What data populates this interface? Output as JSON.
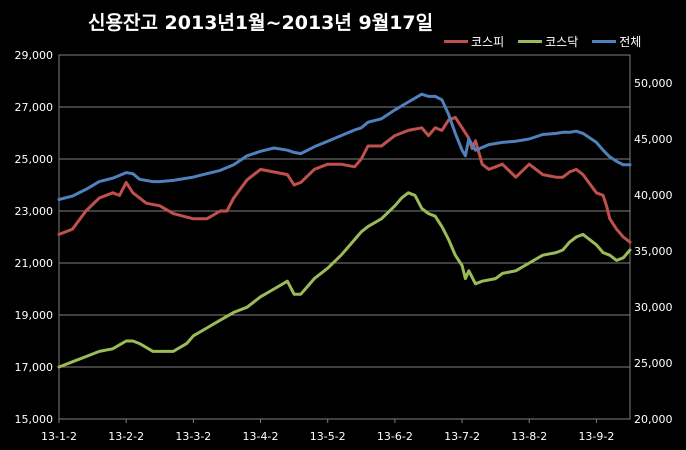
{
  "chart_data": {
    "type": "line",
    "title": "신용잔고 2013년1월~2013년 9월17일",
    "x_ticks": [
      "13-1-2",
      "13-2-2",
      "13-3-2",
      "13-4-2",
      "13-5-2",
      "13-6-2",
      "13-7-2",
      "13-8-2",
      "13-9-2"
    ],
    "x_range": [
      0,
      8.5
    ],
    "y_left": {
      "min": 15000,
      "max": 29000,
      "step": 2000,
      "ticks": [
        "15,000",
        "17,000",
        "19,000",
        "21,000",
        "23,000",
        "25,000",
        "27,000",
        "29,000"
      ]
    },
    "y_right": {
      "min": 20000,
      "max": 52500,
      "step": 5000,
      "ticks": [
        "20,000",
        "25,000",
        "30,000",
        "35,000",
        "40,000",
        "45,000",
        "50,000"
      ]
    },
    "grid": true,
    "legend_position": "top-right",
    "series": [
      {
        "name": "코스피",
        "axis": "left",
        "color": "#c0504d",
        "points": [
          [
            0,
            22100
          ],
          [
            0.2,
            22300
          ],
          [
            0.4,
            23000
          ],
          [
            0.6,
            23500
          ],
          [
            0.8,
            23700
          ],
          [
            0.9,
            23600
          ],
          [
            1.0,
            24100
          ],
          [
            1.1,
            23700
          ],
          [
            1.3,
            23300
          ],
          [
            1.5,
            23200
          ],
          [
            1.7,
            22900
          ],
          [
            2.0,
            22700
          ],
          [
            2.2,
            22700
          ],
          [
            2.4,
            23000
          ],
          [
            2.5,
            23000
          ],
          [
            2.6,
            23500
          ],
          [
            2.8,
            24200
          ],
          [
            3.0,
            24600
          ],
          [
            3.2,
            24500
          ],
          [
            3.4,
            24400
          ],
          [
            3.5,
            24000
          ],
          [
            3.6,
            24100
          ],
          [
            3.8,
            24600
          ],
          [
            4.0,
            24800
          ],
          [
            4.2,
            24800
          ],
          [
            4.4,
            24700
          ],
          [
            4.5,
            25000
          ],
          [
            4.6,
            25500
          ],
          [
            4.8,
            25500
          ],
          [
            5.0,
            25900
          ],
          [
            5.2,
            26100
          ],
          [
            5.4,
            26200
          ],
          [
            5.5,
            25900
          ],
          [
            5.6,
            26200
          ],
          [
            5.7,
            26100
          ],
          [
            5.8,
            26500
          ],
          [
            5.9,
            26600
          ],
          [
            6.0,
            26200
          ],
          [
            6.1,
            25800
          ],
          [
            6.15,
            25400
          ],
          [
            6.2,
            25700
          ],
          [
            6.3,
            24800
          ],
          [
            6.4,
            24600
          ],
          [
            6.5,
            24700
          ],
          [
            6.6,
            24800
          ],
          [
            6.8,
            24300
          ],
          [
            7.0,
            24800
          ],
          [
            7.2,
            24400
          ],
          [
            7.4,
            24300
          ],
          [
            7.5,
            24300
          ],
          [
            7.6,
            24500
          ],
          [
            7.7,
            24600
          ],
          [
            7.8,
            24400
          ],
          [
            8.0,
            23700
          ],
          [
            8.1,
            23600
          ],
          [
            8.15,
            23200
          ],
          [
            8.2,
            22700
          ],
          [
            8.3,
            22300
          ],
          [
            8.4,
            22000
          ],
          [
            8.5,
            21800
          ]
        ]
      },
      {
        "name": "코스닥",
        "axis": "left",
        "color": "#9bbb59",
        "points": [
          [
            0,
            17000
          ],
          [
            0.2,
            17200
          ],
          [
            0.4,
            17400
          ],
          [
            0.6,
            17600
          ],
          [
            0.8,
            17700
          ],
          [
            1.0,
            18000
          ],
          [
            1.1,
            18000
          ],
          [
            1.2,
            17900
          ],
          [
            1.4,
            17600
          ],
          [
            1.5,
            17600
          ],
          [
            1.7,
            17600
          ],
          [
            1.9,
            17900
          ],
          [
            2.0,
            18200
          ],
          [
            2.2,
            18500
          ],
          [
            2.4,
            18800
          ],
          [
            2.6,
            19100
          ],
          [
            2.8,
            19300
          ],
          [
            3.0,
            19700
          ],
          [
            3.2,
            20000
          ],
          [
            3.4,
            20300
          ],
          [
            3.5,
            19800
          ],
          [
            3.6,
            19800
          ],
          [
            3.7,
            20100
          ],
          [
            3.8,
            20400
          ],
          [
            4.0,
            20800
          ],
          [
            4.2,
            21300
          ],
          [
            4.4,
            21900
          ],
          [
            4.5,
            22200
          ],
          [
            4.6,
            22400
          ],
          [
            4.8,
            22700
          ],
          [
            5.0,
            23200
          ],
          [
            5.1,
            23500
          ],
          [
            5.2,
            23700
          ],
          [
            5.3,
            23600
          ],
          [
            5.4,
            23100
          ],
          [
            5.5,
            22900
          ],
          [
            5.6,
            22800
          ],
          [
            5.7,
            22400
          ],
          [
            5.8,
            21900
          ],
          [
            5.9,
            21300
          ],
          [
            6.0,
            20900
          ],
          [
            6.05,
            20400
          ],
          [
            6.1,
            20700
          ],
          [
            6.2,
            20200
          ],
          [
            6.3,
            20300
          ],
          [
            6.5,
            20400
          ],
          [
            6.6,
            20600
          ],
          [
            6.8,
            20700
          ],
          [
            7.0,
            21000
          ],
          [
            7.2,
            21300
          ],
          [
            7.4,
            21400
          ],
          [
            7.5,
            21500
          ],
          [
            7.6,
            21800
          ],
          [
            7.7,
            22000
          ],
          [
            7.8,
            22100
          ],
          [
            8.0,
            21700
          ],
          [
            8.1,
            21400
          ],
          [
            8.2,
            21300
          ],
          [
            8.3,
            21100
          ],
          [
            8.4,
            21200
          ],
          [
            8.5,
            21500
          ]
        ]
      },
      {
        "name": "전체",
        "axis": "right",
        "color": "#4f81bd",
        "points": [
          [
            0,
            39600
          ],
          [
            0.2,
            39900
          ],
          [
            0.4,
            40500
          ],
          [
            0.6,
            41200
          ],
          [
            0.8,
            41500
          ],
          [
            1.0,
            42000
          ],
          [
            1.1,
            41900
          ],
          [
            1.2,
            41400
          ],
          [
            1.4,
            41200
          ],
          [
            1.5,
            41200
          ],
          [
            1.7,
            41300
          ],
          [
            2.0,
            41600
          ],
          [
            2.2,
            41900
          ],
          [
            2.4,
            42200
          ],
          [
            2.6,
            42700
          ],
          [
            2.8,
            43500
          ],
          [
            3.0,
            43900
          ],
          [
            3.2,
            44200
          ],
          [
            3.4,
            44000
          ],
          [
            3.5,
            43800
          ],
          [
            3.6,
            43700
          ],
          [
            3.8,
            44300
          ],
          [
            4.0,
            44800
          ],
          [
            4.2,
            45300
          ],
          [
            4.4,
            45800
          ],
          [
            4.5,
            46000
          ],
          [
            4.6,
            46500
          ],
          [
            4.8,
            46800
          ],
          [
            5.0,
            47600
          ],
          [
            5.2,
            48300
          ],
          [
            5.4,
            49000
          ],
          [
            5.5,
            48800
          ],
          [
            5.6,
            48800
          ],
          [
            5.7,
            48500
          ],
          [
            5.8,
            47200
          ],
          [
            5.9,
            45500
          ],
          [
            6.0,
            44000
          ],
          [
            6.05,
            43500
          ],
          [
            6.1,
            45000
          ],
          [
            6.2,
            44000
          ],
          [
            6.4,
            44500
          ],
          [
            6.6,
            44700
          ],
          [
            6.8,
            44800
          ],
          [
            7.0,
            45000
          ],
          [
            7.2,
            45400
          ],
          [
            7.4,
            45500
          ],
          [
            7.5,
            45600
          ],
          [
            7.6,
            45600
          ],
          [
            7.7,
            45700
          ],
          [
            7.8,
            45500
          ],
          [
            8.0,
            44700
          ],
          [
            8.1,
            44000
          ],
          [
            8.2,
            43400
          ],
          [
            8.3,
            43000
          ],
          [
            8.4,
            42700
          ],
          [
            8.5,
            42700
          ]
        ]
      }
    ]
  }
}
